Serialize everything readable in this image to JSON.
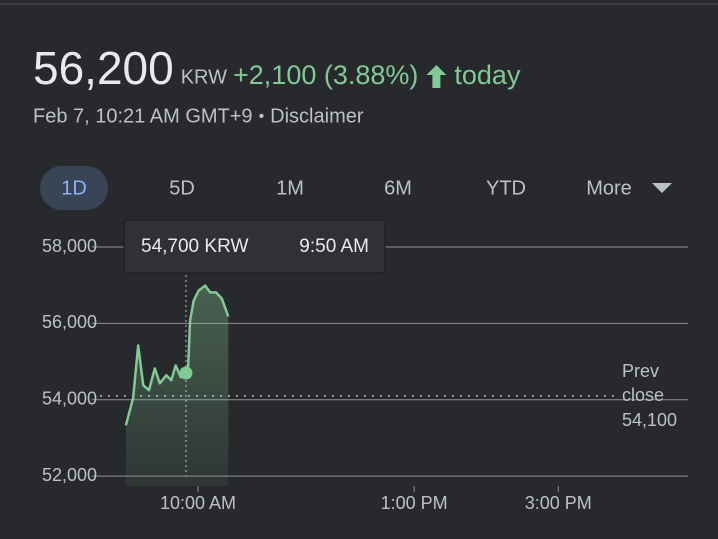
{
  "header": {
    "price": "56,200",
    "currency": "KRW",
    "change": "+2,100 (3.88%)",
    "period": "today",
    "date": "Feb 7, 10:21 AM GMT+9",
    "separator": "•",
    "disclaimer": "Disclaimer",
    "tabs": [
      "1D",
      "5D",
      "1M",
      "6M",
      "YTD",
      "More"
    ],
    "selected_tab": 0
  },
  "chart_data": {
    "type": "line",
    "x": [
      9.0,
      9.1,
      9.17,
      9.24,
      9.32,
      9.4,
      9.47,
      9.56,
      9.63,
      9.69,
      9.76,
      9.833,
      9.86,
      9.89,
      9.94,
      10.01,
      10.1,
      10.17,
      10.25,
      10.33,
      10.42
    ],
    "series": [
      {
        "name": "KRW",
        "color": "#81c995",
        "values": [
          53330,
          54040,
          55420,
          54380,
          54250,
          54820,
          54430,
          54640,
          54510,
          54900,
          54590,
          54700,
          54720,
          56080,
          56600,
          56860,
          56990,
          56810,
          56810,
          56650,
          56180
        ]
      }
    ],
    "xlim": [
      8.64,
      16.8
    ],
    "ylim": [
      51740,
      58000
    ],
    "xticks": [
      {
        "value": 10,
        "label": "10:00 AM"
      },
      {
        "value": 13,
        "label": "1:00 PM"
      },
      {
        "value": 15,
        "label": "3:00 PM"
      }
    ],
    "yticks": [
      {
        "value": 52000,
        "label": "52,000"
      },
      {
        "value": 54000,
        "label": "54,000"
      },
      {
        "value": 56000,
        "label": "56,000"
      },
      {
        "value": 58000,
        "label": "58,000"
      }
    ],
    "grid": true,
    "prev_close": {
      "value": 54100,
      "label": "54,100",
      "title": [
        "Prev",
        "close"
      ]
    },
    "tooltip": {
      "index": 11,
      "price": "54,700 KRW",
      "time": "9:50 AM"
    }
  }
}
